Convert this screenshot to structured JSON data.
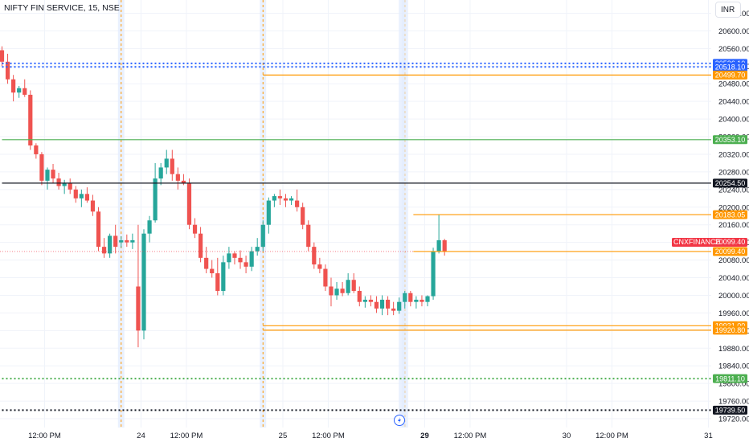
{
  "header": {
    "symbol_title": "NIFTY FIN SERVICE, 15, NSE",
    "currency_button": "INR"
  },
  "colors": {
    "up": "#26a69a",
    "down": "#ef5350",
    "blue_line": "#2962ff",
    "orange_line": "#ff9800",
    "green_line": "#4caf50",
    "black_line": "#131722",
    "price_tag": "#f23645",
    "grid": "#f0f3fa",
    "axis_text": "#131722"
  },
  "chart_data": {
    "type": "candlestick",
    "title": "",
    "ylim": [
      19700,
      20670
    ],
    "y_ticks": [
      20640,
      20600,
      20560,
      20520,
      20480,
      20440,
      20400,
      20360,
      20320,
      20280,
      20240,
      20200,
      20160,
      20120,
      20080,
      20040,
      20000,
      19960,
      19920,
      19880,
      19840,
      19800,
      19760,
      19720
    ],
    "y_tick_labels": [
      "20640.00",
      "20600.00",
      "20560.00",
      "20520.00",
      "20480.00",
      "20440.00",
      "20400.00",
      "20360.00",
      "20320.00",
      "20280.00",
      "20240.00",
      "20200.00",
      "20160.00",
      "20120.00",
      "20080.00",
      "20040.00",
      "20000.00",
      "19960.00",
      "19920.00",
      "19880.00",
      "19840.00",
      "19800.00",
      "19760.00",
      "19720.00"
    ],
    "x_ticks": [
      {
        "label": "12:00 PM",
        "bar": 7.5,
        "bold": false
      },
      {
        "label": "24",
        "bar": 24.5,
        "bold": false
      },
      {
        "label": "12:00 PM",
        "bar": 32.5,
        "bold": false
      },
      {
        "label": "25",
        "bar": 49.5,
        "bold": false
      },
      {
        "label": "12:00 PM",
        "bar": 57.5,
        "bold": false
      },
      {
        "label": "29",
        "bar": 74.5,
        "bold": true
      },
      {
        "label": "12:00 PM",
        "bar": 82.5,
        "bold": false
      },
      {
        "label": "30",
        "bar": 99.5,
        "bold": false
      },
      {
        "label": "12:00 PM",
        "bar": 107.5,
        "bold": false
      },
      {
        "label": "31",
        "bar": 124.5,
        "bold": false
      }
    ],
    "session_breaks": [
      21,
      46,
      71
    ],
    "candles": [
      [
        20556,
        20565,
        20520,
        20530
      ],
      [
        20530,
        20548,
        20480,
        20490
      ],
      [
        20490,
        20500,
        20440,
        20460
      ],
      [
        20460,
        20475,
        20448,
        20470
      ],
      [
        20470,
        20490,
        20450,
        20455
      ],
      [
        20455,
        20465,
        20330,
        20340
      ],
      [
        20340,
        20345,
        20310,
        20320
      ],
      [
        20320,
        20325,
        20250,
        20260
      ],
      [
        20260,
        20290,
        20240,
        20285
      ],
      [
        20285,
        20298,
        20255,
        20265
      ],
      [
        20265,
        20278,
        20240,
        20248
      ],
      [
        20248,
        20262,
        20230,
        20255
      ],
      [
        20255,
        20265,
        20230,
        20240
      ],
      [
        20240,
        20248,
        20210,
        20220
      ],
      [
        20220,
        20240,
        20200,
        20230
      ],
      [
        20230,
        20245,
        20210,
        20215
      ],
      [
        20215,
        20228,
        20180,
        20190
      ],
      [
        20190,
        20200,
        20100,
        20110
      ],
      [
        20110,
        20130,
        20085,
        20095
      ],
      [
        20095,
        20140,
        20085,
        20135
      ],
      [
        20135,
        20160,
        20095,
        20110
      ],
      [
        20120,
        20134,
        20108,
        20125
      ],
      [
        20125,
        20138,
        20110,
        20120
      ],
      [
        20120,
        20140,
        20105,
        20125
      ],
      [
        20020,
        20160,
        19882,
        19920
      ],
      [
        19920,
        20150,
        19900,
        20140
      ],
      [
        20140,
        20180,
        20120,
        20170
      ],
      [
        20170,
        20300,
        20165,
        20265
      ],
      [
        20265,
        20300,
        20250,
        20290
      ],
      [
        20290,
        20330,
        20275,
        20310
      ],
      [
        20310,
        20330,
        20260,
        20275
      ],
      [
        20275,
        20290,
        20240,
        20260
      ],
      [
        20260,
        20275,
        20250,
        20255
      ],
      [
        20255,
        20265,
        20150,
        20160
      ],
      [
        20160,
        20175,
        20130,
        20140
      ],
      [
        20140,
        20155,
        20075,
        20085
      ],
      [
        20085,
        20110,
        20050,
        20060
      ],
      [
        20060,
        20080,
        20040,
        20050
      ],
      [
        20050,
        20085,
        20000,
        20010
      ],
      [
        20010,
        20090,
        20000,
        20075
      ],
      [
        20075,
        20110,
        20060,
        20095
      ],
      [
        20095,
        20100,
        20070,
        20085
      ],
      [
        20085,
        20102,
        20060,
        20075
      ],
      [
        20075,
        20090,
        20050,
        20065
      ],
      [
        20065,
        20110,
        20055,
        20100
      ],
      [
        20100,
        20130,
        20090,
        20110
      ],
      [
        20110,
        20170,
        20100,
        20160
      ],
      [
        20160,
        20222,
        20140,
        20215
      ],
      [
        20215,
        20230,
        20200,
        20225
      ],
      [
        20225,
        20240,
        20205,
        20220
      ],
      [
        20220,
        20230,
        20200,
        20215
      ],
      [
        20215,
        20225,
        20205,
        20220
      ],
      [
        20215,
        20240,
        20190,
        20200
      ],
      [
        20200,
        20210,
        20150,
        20160
      ],
      [
        20160,
        20170,
        20100,
        20110
      ],
      [
        20110,
        20120,
        20060,
        20070
      ],
      [
        20070,
        20085,
        20050,
        20060
      ],
      [
        20060,
        20070,
        20010,
        20020
      ],
      [
        20020,
        20040,
        19975,
        20000
      ],
      [
        20000,
        20030,
        19990,
        20015
      ],
      [
        20015,
        20030,
        19998,
        20005
      ],
      [
        20005,
        20050,
        20000,
        20035
      ],
      [
        20035,
        20050,
        20005,
        20010
      ],
      [
        20010,
        20020,
        19975,
        19985
      ],
      [
        19985,
        19998,
        19972,
        19990
      ],
      [
        19990,
        20000,
        19975,
        19985
      ],
      [
        19985,
        19998,
        19960,
        19970
      ],
      [
        19970,
        20000,
        19955,
        19990
      ],
      [
        19990,
        19998,
        19955,
        19970
      ],
      [
        19970,
        19985,
        19955,
        19965
      ],
      [
        19965,
        19995,
        19958,
        19985
      ],
      [
        19985,
        20010,
        19970,
        20005
      ],
      [
        20005,
        20010,
        19975,
        19985
      ],
      [
        19985,
        19998,
        19970,
        19990
      ],
      [
        19990,
        20000,
        19975,
        19985
      ],
      [
        19985,
        20000,
        19975,
        19998
      ],
      [
        19998,
        20108,
        19990,
        20100
      ],
      [
        20100,
        20183,
        20095,
        20125
      ],
      [
        20125,
        20128,
        20090,
        20099
      ]
    ],
    "horizontal_levels": [
      {
        "price": 20526.1,
        "label": "20526.10",
        "style": "dotted",
        "color": "#2962ff",
        "start_bar": 0
      },
      {
        "price": 20518.1,
        "label": "20518.10",
        "style": "dotted",
        "color": "#2962ff",
        "start_bar": 0
      },
      {
        "price": 20499.7,
        "label": "20499.70",
        "style": "solid",
        "color": "#ff9800",
        "start_bar": 46
      },
      {
        "price": 20353.1,
        "label": "20353.10",
        "style": "solid",
        "color": "#4caf50",
        "start_bar": 0
      },
      {
        "price": 20254.5,
        "label": "20254.50",
        "style": "solid",
        "color": "#131722",
        "start_bar": 0
      },
      {
        "price": 20183.05,
        "label": "20183.05",
        "style": "solid",
        "color": "#ff9800",
        "start_bar": 72.5
      },
      {
        "price": 20099.4,
        "label": "20099.40",
        "style": "solid",
        "color": "#ff9800",
        "start_bar": 72.5
      },
      {
        "price": 19931.0,
        "label": "19931.00",
        "style": "solid",
        "color": "#ff9800",
        "start_bar": 46
      },
      {
        "price": 19920.8,
        "label": "19920.80",
        "style": "solid",
        "color": "#ff9800",
        "start_bar": 46
      },
      {
        "price": 19811.1,
        "label": "19811.10",
        "style": "dotted",
        "color": "#4caf50",
        "start_bar": 0
      },
      {
        "price": 19739.5,
        "label": "19739.50",
        "style": "dotted",
        "color": "#131722",
        "start_bar": 0
      }
    ],
    "symbol_tag": {
      "text": "CNXFINANCE",
      "price": 20099.4
    },
    "last_price": 20099.4
  }
}
